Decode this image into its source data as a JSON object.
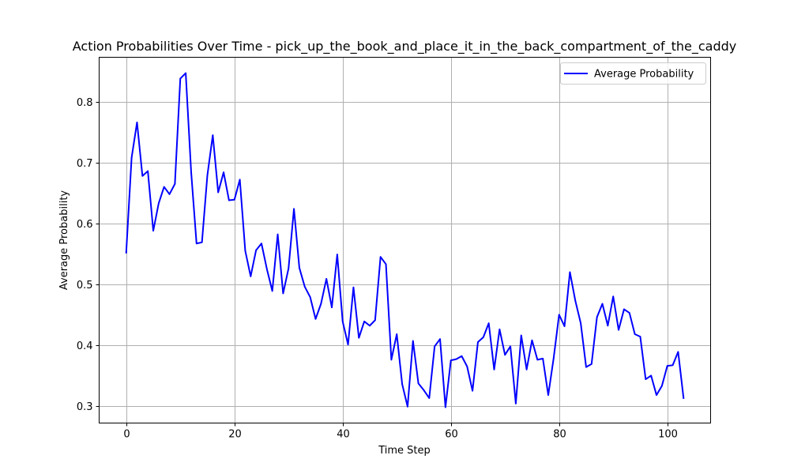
{
  "chart_data": {
    "type": "line",
    "title": "Action Probabilities Over Time - pick_up_the_book_and_place_it_in_the_back_compartment_of_the_caddy",
    "xlabel": "Time Step",
    "ylabel": "Average Probability",
    "xlim": [
      -5,
      108
    ],
    "ylim": [
      0.272,
      0.873
    ],
    "xticks": [
      0,
      20,
      40,
      60,
      80,
      100
    ],
    "yticks": [
      0.3,
      0.4,
      0.5,
      0.6,
      0.7,
      0.8
    ],
    "ytick_labels": [
      "0.3",
      "0.4",
      "0.5",
      "0.6",
      "0.7",
      "0.8"
    ],
    "grid": true,
    "legend_position": "top-right",
    "series": [
      {
        "name": "Average Probability",
        "color": "#0000ff",
        "x": [
          0,
          1,
          2,
          3,
          4,
          5,
          6,
          7,
          8,
          9,
          10,
          11,
          12,
          13,
          14,
          15,
          16,
          17,
          18,
          19,
          20,
          21,
          22,
          23,
          24,
          25,
          26,
          27,
          28,
          29,
          30,
          31,
          32,
          33,
          34,
          35,
          36,
          37,
          38,
          39,
          40,
          41,
          42,
          43,
          44,
          45,
          46,
          47,
          48,
          49,
          50,
          51,
          52,
          53,
          54,
          55,
          56,
          57,
          58,
          59,
          60,
          61,
          62,
          63,
          64,
          65,
          66,
          67,
          68,
          69,
          70,
          71,
          72,
          73,
          74,
          75,
          76,
          77,
          78,
          79,
          80,
          81,
          82,
          83,
          84,
          85,
          86,
          87,
          88,
          89,
          90,
          91,
          92,
          93,
          94,
          95,
          96,
          97,
          98,
          99,
          100,
          101,
          102,
          103
        ],
        "values": [
          0.552,
          0.708,
          0.766,
          0.678,
          0.686,
          0.588,
          0.633,
          0.66,
          0.648,
          0.665,
          0.838,
          0.847,
          0.685,
          0.567,
          0.569,
          0.679,
          0.745,
          0.651,
          0.684,
          0.638,
          0.639,
          0.672,
          0.555,
          0.513,
          0.556,
          0.567,
          0.525,
          0.489,
          0.582,
          0.485,
          0.526,
          0.624,
          0.527,
          0.496,
          0.479,
          0.443,
          0.468,
          0.509,
          0.462,
          0.549,
          0.439,
          0.401,
          0.495,
          0.412,
          0.439,
          0.432,
          0.441,
          0.545,
          0.533,
          0.376,
          0.418,
          0.336,
          0.299,
          0.407,
          0.337,
          0.326,
          0.313,
          0.398,
          0.41,
          0.298,
          0.375,
          0.377,
          0.382,
          0.365,
          0.325,
          0.405,
          0.413,
          0.436,
          0.36,
          0.426,
          0.384,
          0.398,
          0.304,
          0.416,
          0.36,
          0.408,
          0.376,
          0.378,
          0.318,
          0.379,
          0.45,
          0.431,
          0.52,
          0.473,
          0.436,
          0.364,
          0.369,
          0.446,
          0.468,
          0.432,
          0.48,
          0.425,
          0.459,
          0.453,
          0.418,
          0.414,
          0.344,
          0.35,
          0.318,
          0.333,
          0.366,
          0.367,
          0.389,
          0.313
        ]
      }
    ]
  }
}
